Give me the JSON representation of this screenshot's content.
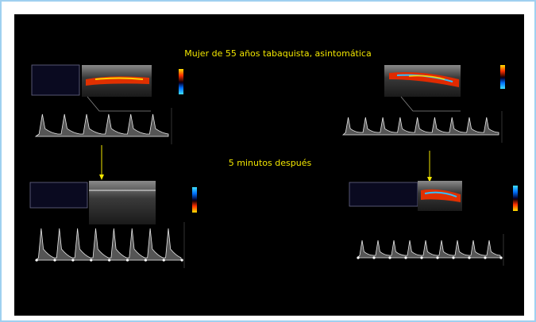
{
  "figure": {
    "title": "Mujer de 55 años tabaquista, asintomática",
    "subtitle": "5 minutos después"
  }
}
